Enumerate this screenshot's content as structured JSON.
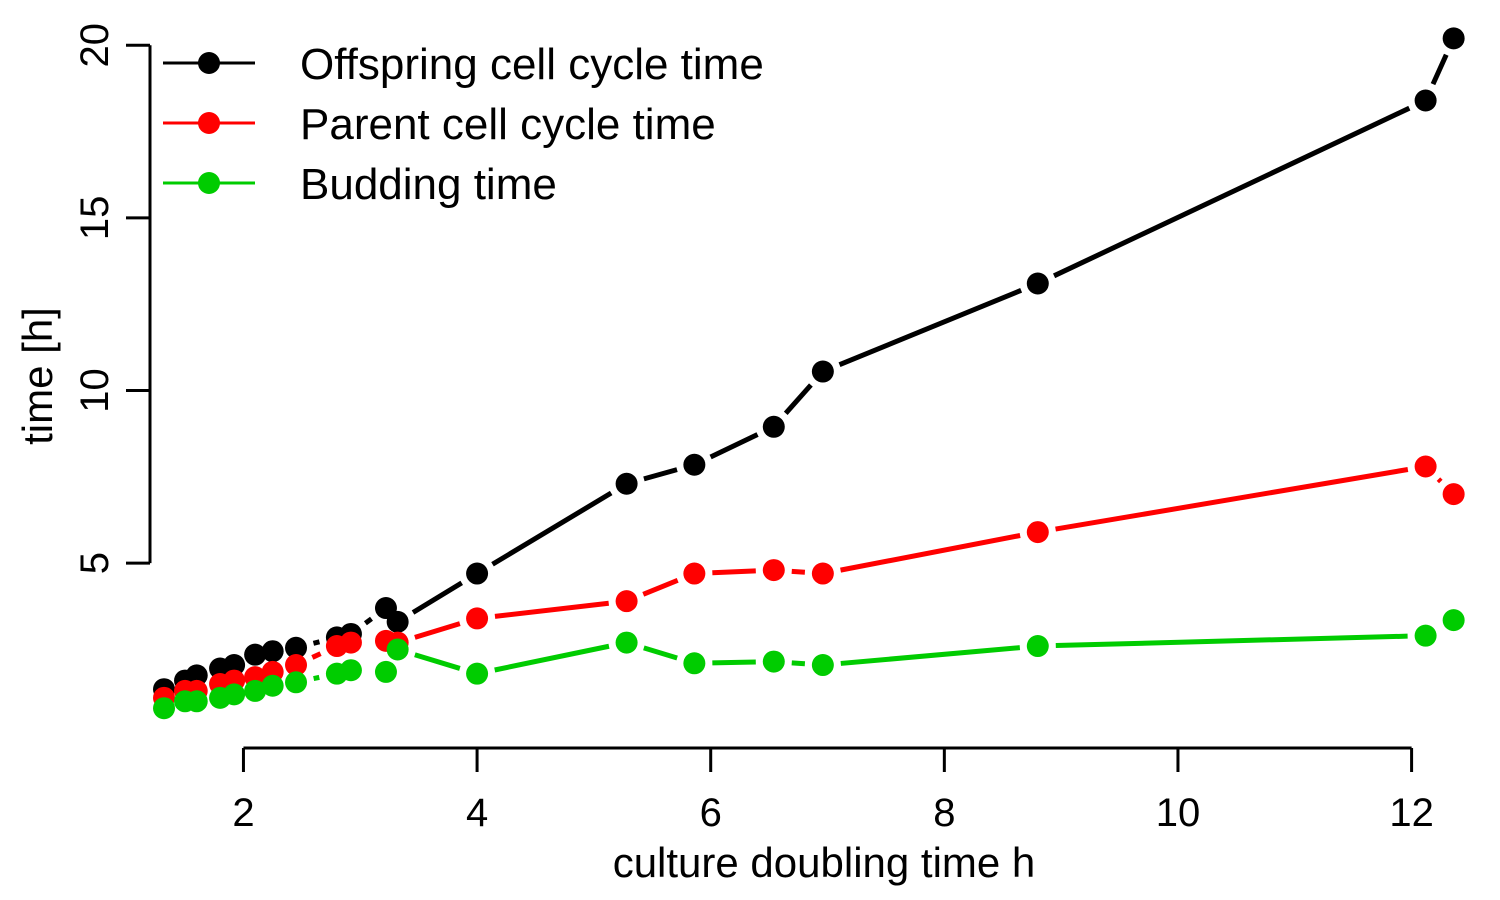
{
  "chart_data": {
    "type": "line",
    "xlabel": "culture doubling time h",
    "ylabel": "time [h]",
    "xlim": [
      1.2,
      12.5
    ],
    "ylim": [
      0.4,
      20.5
    ],
    "x_ticks": [
      2,
      4,
      6,
      8,
      10,
      12
    ],
    "y_ticks": [
      5,
      10,
      15,
      20
    ],
    "grid": false,
    "legend_position": "top-left",
    "x": [
      1.32,
      1.5,
      1.6,
      1.8,
      1.92,
      2.1,
      2.25,
      2.45,
      2.8,
      2.92,
      3.22,
      3.32,
      4.0,
      5.28,
      5.86,
      6.54,
      6.96,
      8.8,
      12.12,
      12.36
    ],
    "series": [
      {
        "name": "Offspring cell cycle time",
        "color": "#000000",
        "values": [
          1.35,
          1.6,
          1.75,
          1.95,
          2.05,
          2.35,
          2.45,
          2.55,
          2.85,
          2.95,
          3.7,
          3.3,
          4.7,
          7.3,
          7.85,
          8.95,
          10.55,
          13.1,
          18.4,
          20.2
        ]
      },
      {
        "name": "Parent cell cycle time",
        "color": "#ff0000",
        "values": [
          1.1,
          1.3,
          1.3,
          1.5,
          1.6,
          1.7,
          1.85,
          2.05,
          2.6,
          2.7,
          2.75,
          2.7,
          3.4,
          3.9,
          4.7,
          4.8,
          4.7,
          5.9,
          7.8,
          7.0
        ]
      },
      {
        "name": "Budding time",
        "color": "#00cc00",
        "values": [
          0.8,
          1.0,
          1.0,
          1.1,
          1.2,
          1.3,
          1.45,
          1.55,
          1.8,
          1.9,
          1.85,
          2.5,
          1.8,
          2.7,
          2.1,
          2.15,
          2.05,
          2.6,
          2.9,
          3.35
        ]
      }
    ]
  }
}
